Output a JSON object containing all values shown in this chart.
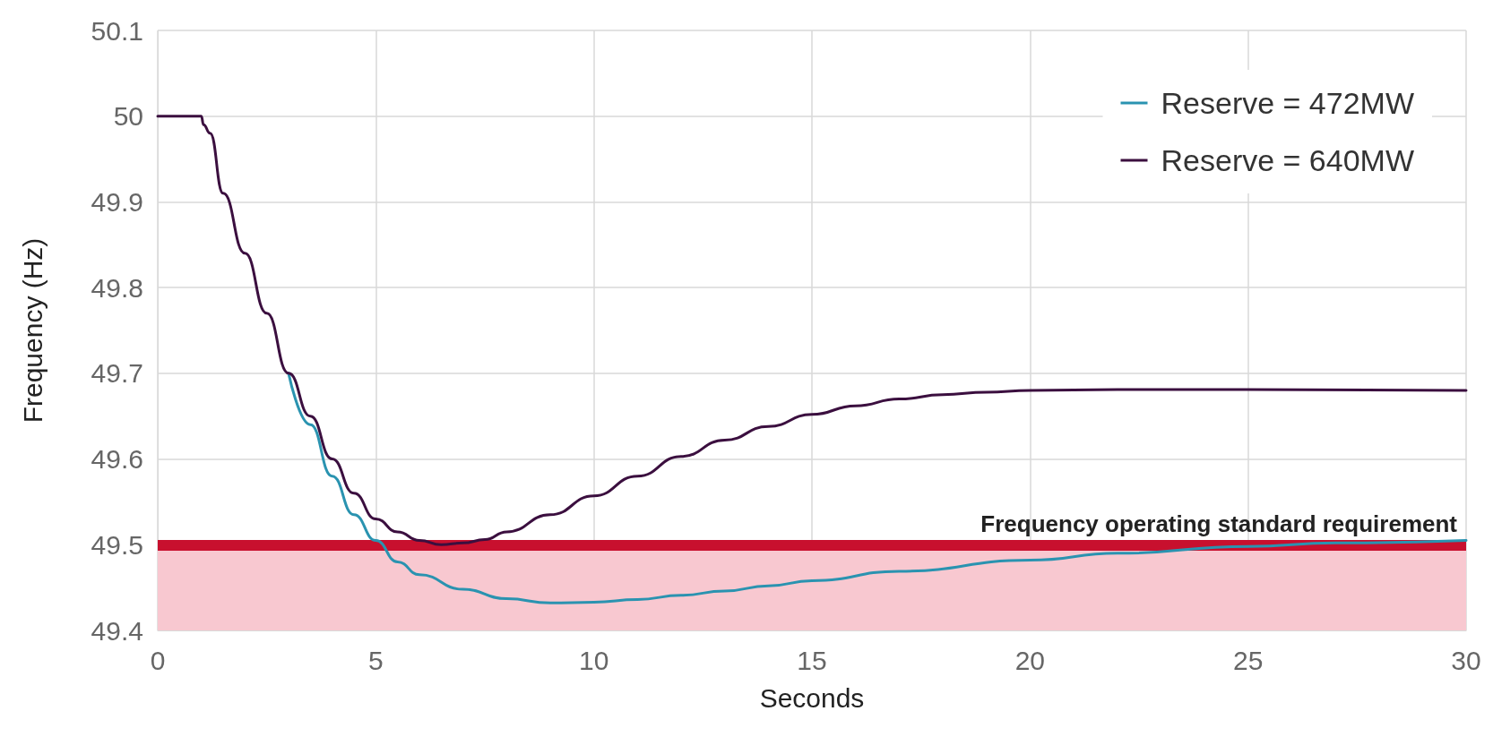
{
  "chart_data": {
    "type": "line",
    "xlabel": "Seconds",
    "ylabel": "Frequency (Hz)",
    "xlim": [
      0,
      30
    ],
    "xticks": [
      0,
      5,
      10,
      15,
      20,
      25,
      30
    ],
    "ylim": [
      49.4,
      50.1
    ],
    "yticks": [
      49.4,
      49.5,
      49.6,
      49.7,
      49.8,
      49.9,
      50,
      50.1
    ],
    "grid": true,
    "legend": "top right",
    "marker": "none",
    "line_style": "solid",
    "ref_lines": [
      {
        "axis": "y",
        "value": 49.5,
        "label": "Frequency operating standard requirement",
        "color": "#c8102e"
      }
    ],
    "bands": [
      {
        "axis": "y",
        "from": 49.4,
        "to": 49.5,
        "color": "#f8c8d0"
      }
    ],
    "series": [
      {
        "name": "Reserve = 472MW",
        "color": "#2a93b0",
        "x": [
          3,
          3.5,
          4,
          4.5,
          5,
          5.5,
          6,
          7,
          8,
          9,
          10,
          11,
          12,
          13,
          14,
          15,
          17,
          20,
          22,
          25,
          27,
          30
        ],
        "values": [
          49.7,
          49.64,
          49.58,
          49.535,
          49.505,
          49.48,
          49.465,
          49.448,
          49.437,
          49.432,
          49.433,
          49.436,
          49.441,
          49.446,
          49.452,
          49.458,
          49.469,
          49.482,
          49.49,
          49.498,
          49.502,
          49.505
        ]
      },
      {
        "name": "Reserve = 640MW",
        "color": "#3b0f3f",
        "x": [
          0,
          1,
          1.05,
          1.2,
          1.5,
          2,
          2.5,
          3,
          3.5,
          4,
          4.5,
          5,
          5.5,
          6,
          6.5,
          7,
          7.5,
          8,
          9,
          10,
          11,
          12,
          13,
          14,
          15,
          16,
          17,
          18,
          19,
          20,
          22,
          25,
          30
        ],
        "values": [
          50,
          50,
          49.99,
          49.98,
          49.91,
          49.84,
          49.77,
          49.7,
          49.65,
          49.6,
          49.56,
          49.53,
          49.515,
          49.505,
          49.5,
          49.502,
          49.506,
          49.515,
          49.535,
          49.557,
          49.58,
          49.603,
          49.622,
          49.638,
          49.652,
          49.662,
          49.67,
          49.675,
          49.678,
          49.68,
          49.681,
          49.681,
          49.68
        ]
      }
    ]
  }
}
